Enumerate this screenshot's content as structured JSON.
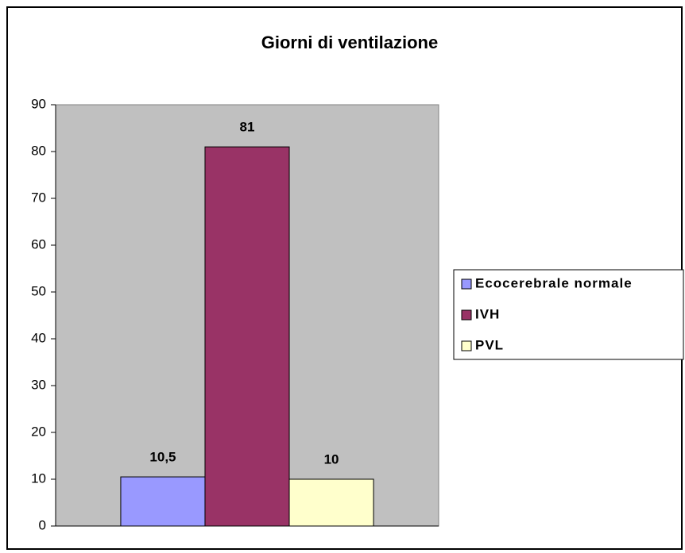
{
  "chart_data": {
    "type": "bar",
    "title": "Giorni di ventilazione",
    "categories": [
      null
    ],
    "series": [
      {
        "name": "Ecocerebrale normale",
        "color": "#9999ff",
        "values": [
          10.5
        ],
        "value_labels": [
          "10,5"
        ]
      },
      {
        "name": "IVH",
        "color": "#993366",
        "values": [
          81
        ]
      },
      {
        "name": "PVL",
        "color": "#ffffcc",
        "values": [
          10
        ]
      }
    ],
    "ylim": [
      0,
      90
    ],
    "yticks": [
      0,
      10,
      20,
      30,
      40,
      50,
      60,
      70,
      80,
      90
    ],
    "legend": "right",
    "plot_background": "#c0c0c0"
  }
}
